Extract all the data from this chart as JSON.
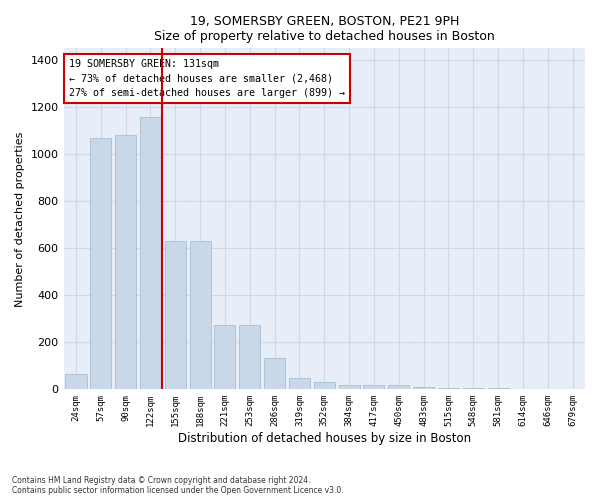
{
  "title1": "19, SOMERSBY GREEN, BOSTON, PE21 9PH",
  "title2": "Size of property relative to detached houses in Boston",
  "xlabel": "Distribution of detached houses by size in Boston",
  "ylabel": "Number of detached properties",
  "categories": [
    "24sqm",
    "57sqm",
    "90sqm",
    "122sqm",
    "155sqm",
    "188sqm",
    "221sqm",
    "253sqm",
    "286sqm",
    "319sqm",
    "352sqm",
    "384sqm",
    "417sqm",
    "450sqm",
    "483sqm",
    "515sqm",
    "548sqm",
    "581sqm",
    "614sqm",
    "646sqm",
    "679sqm"
  ],
  "values": [
    65,
    1070,
    1080,
    1160,
    630,
    630,
    275,
    275,
    135,
    50,
    30,
    20,
    20,
    20,
    10,
    5,
    5,
    5,
    2,
    2,
    2
  ],
  "bar_color": "#c8d8e8",
  "bar_edge_color": "#a0b8cc",
  "highlight_line_color": "#cc0000",
  "annotation_text_line1": "19 SOMERSBY GREEN: 131sqm",
  "annotation_text_line2": "← 73% of detached houses are smaller (2,468)",
  "annotation_text_line3": "27% of semi-detached houses are larger (899) →",
  "annotation_box_color": "#cc0000",
  "annotation_bg": "#ffffff",
  "ylim": [
    0,
    1450
  ],
  "grid_color": "#d0d8e8",
  "bg_color": "#e8eef8",
  "footer1": "Contains HM Land Registry data © Crown copyright and database right 2024.",
  "footer2": "Contains public sector information licensed under the Open Government Licence v3.0."
}
